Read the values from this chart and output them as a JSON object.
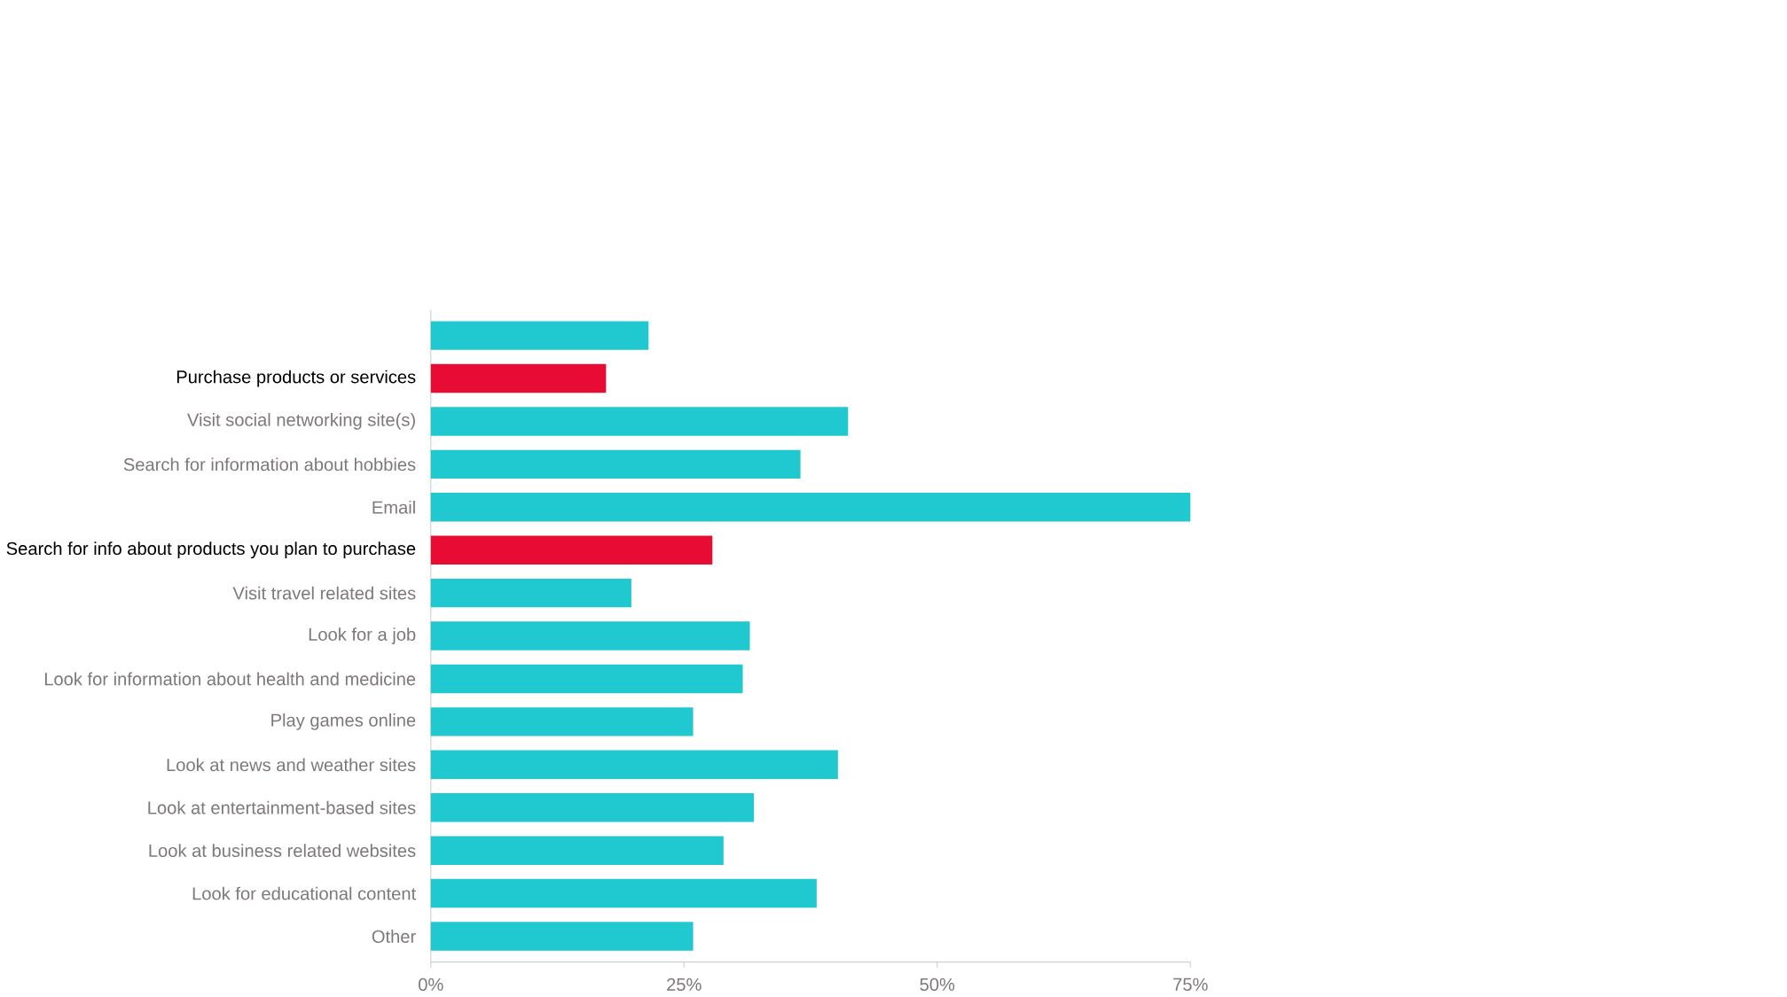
{
  "chart_data": {
    "type": "bar",
    "orientation": "horizontal",
    "categories": [
      null,
      "Purchase products or services",
      "Visit social networking site(s)",
      "Search for information about hobbies",
      "Email",
      "Search for info about products you plan to purchase",
      "Visit travel related sites",
      "Look for a job",
      "Look for information about health and medicine",
      "Play games online",
      "Look at news and weather sites",
      "Look at entertainment-based sites",
      "Look at business related websites",
      "Look for educational content",
      "Other"
    ],
    "values": [
      21.5,
      17.3,
      41.2,
      36.5,
      75,
      27.8,
      19.8,
      31.5,
      30.8,
      25.9,
      40.2,
      31.9,
      28.9,
      38.1,
      25.9
    ],
    "colors": [
      "#20c8cf",
      "#e80c35",
      "#20c8cf",
      "#20c8cf",
      "#20c8cf",
      "#e80c35",
      "#20c8cf",
      "#20c8cf",
      "#20c8cf",
      "#20c8cf",
      "#20c8cf",
      "#20c8cf",
      "#20c8cf",
      "#20c8cf",
      "#20c8cf"
    ],
    "xlim": [
      0,
      75
    ],
    "xticks": [
      {
        "value": 0,
        "label": "0%"
      },
      {
        "value": 25,
        "label": "25%"
      },
      {
        "value": 50,
        "label": "50%"
      },
      {
        "value": 75,
        "label": "75%"
      }
    ],
    "grid": false
  }
}
